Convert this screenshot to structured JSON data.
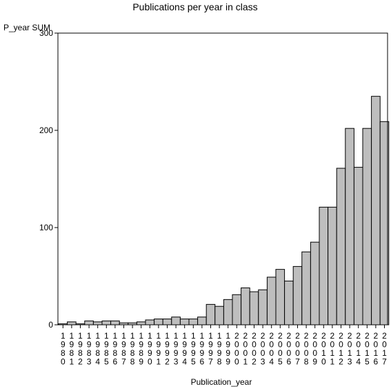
{
  "chart_data": {
    "type": "bar",
    "title": "Publications per year in class",
    "xlabel": "Publication_year",
    "ylabel": "P_year SUM",
    "ylim": [
      0,
      300
    ],
    "yticks": [
      0,
      100,
      200,
      300
    ],
    "grid": false,
    "bar_color": "#bebebe",
    "categories": [
      "1980",
      "1981",
      "1982",
      "1983",
      "1984",
      "1985",
      "1986",
      "1987",
      "1988",
      "1989",
      "1990",
      "1991",
      "1992",
      "1993",
      "1994",
      "1995",
      "1996",
      "1997",
      "1998",
      "1999",
      "2000",
      "2001",
      "2002",
      "2003",
      "2004",
      "2005",
      "2006",
      "2007",
      "2008",
      "2009",
      "2010",
      "2011",
      "2012",
      "2013",
      "2014",
      "2015",
      "2016",
      "2017"
    ],
    "values": [
      1,
      3,
      1,
      4,
      3,
      4,
      4,
      2,
      2,
      3,
      5,
      6,
      6,
      8,
      6,
      6,
      8,
      21,
      19,
      26,
      31,
      38,
      34,
      36,
      49,
      57,
      45,
      60,
      75,
      85,
      121,
      121,
      161,
      202,
      162,
      202,
      235,
      209
    ]
  }
}
